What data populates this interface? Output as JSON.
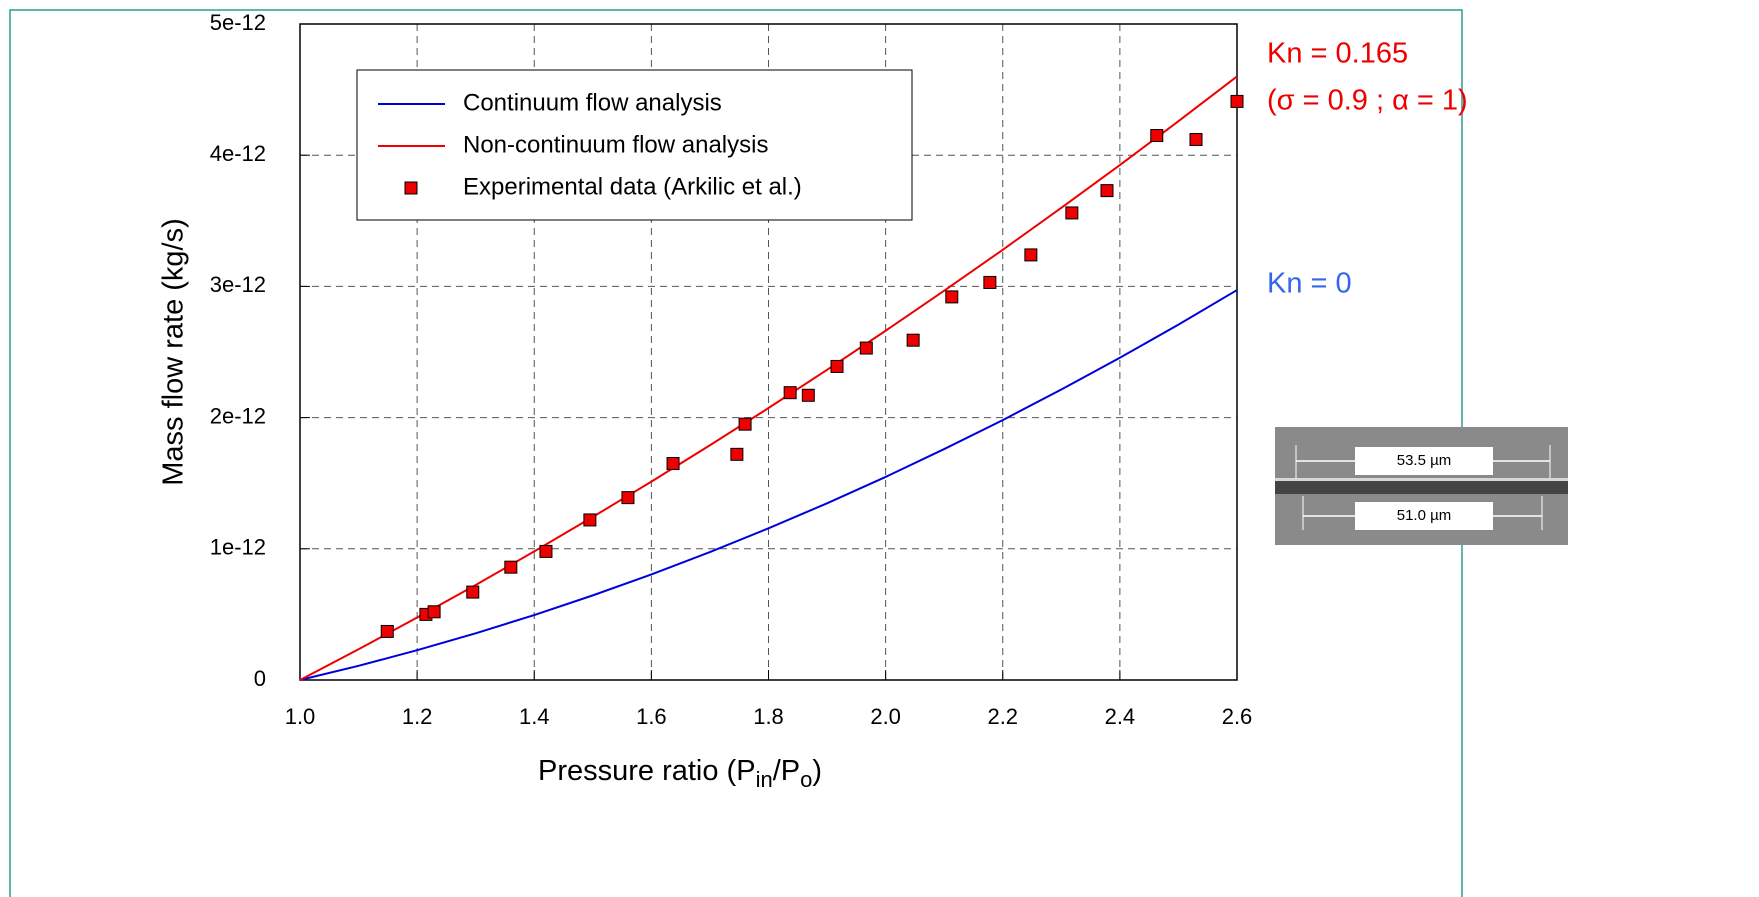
{
  "chart_data": {
    "type": "line",
    "x_label": [
      "Pressure ratio (P",
      "in",
      "/P",
      "o",
      ")"
    ],
    "y_label": "Mass flow rate (kg/s)",
    "xlim": [
      1.0,
      2.6
    ],
    "ylim": [
      0,
      5e-12
    ],
    "xticks": [
      {
        "value": 1.0,
        "label": "1.0"
      },
      1.2,
      1.4,
      1.6,
      1.8,
      {
        "value": 2.0,
        "label": "2.0"
      },
      2.2,
      2.4,
      2.6
    ],
    "yticks": [
      0,
      1e-12,
      2e-12,
      3e-12,
      4e-12,
      5e-12
    ],
    "grid": true,
    "legend": "top-left",
    "series": [
      {
        "name": "Continuum flow analysis",
        "type": "line",
        "color": "#0000dd",
        "x": [
          1.0,
          1.1,
          1.2,
          1.3,
          1.4,
          1.5,
          1.6,
          1.7,
          1.8,
          1.9,
          2.0,
          2.1,
          2.2,
          2.3,
          2.4,
          2.5,
          2.6
        ],
        "values": [
          0,
          1.08e-13,
          2.27e-13,
          3.56e-13,
          4.95e-13,
          6.45e-13,
          8.05e-13,
          9.75e-13,
          1.156e-12,
          1.347e-12,
          1.548e-12,
          1.76e-12,
          1.981e-12,
          2.214e-12,
          2.456e-12,
          2.709e-12,
          2.972e-12
        ]
      },
      {
        "name": "Non-continuum flow analysis",
        "type": "line",
        "color": "#ee0000",
        "x": [
          1.0,
          1.1,
          1.2,
          1.3,
          1.4,
          1.5,
          1.6,
          1.7,
          1.8,
          1.9,
          2.0,
          2.1,
          2.2,
          2.3,
          2.4,
          2.5,
          2.6
        ],
        "values": [
          0,
          2.34e-13,
          4.76e-13,
          7.24e-13,
          9.8e-13,
          1.243e-12,
          1.512e-12,
          1.789e-12,
          2.073e-12,
          2.364e-12,
          2.662e-12,
          2.967e-12,
          3.279e-12,
          3.599e-12,
          3.925e-12,
          4.259e-12,
          4.6e-12
        ]
      },
      {
        "name": "Experimental data (Arkilic et al.)",
        "type": "scatter",
        "color": "#ee0000",
        "x": [
          1.149,
          1.215,
          1.229,
          1.295,
          1.36,
          1.42,
          1.495,
          1.56,
          1.637,
          1.746,
          1.76,
          1.837,
          1.868,
          1.917,
          1.967,
          2.047,
          2.113,
          2.178,
          2.248,
          2.318,
          2.378,
          2.463,
          2.53,
          2.6
        ],
        "values": [
          3.7e-13,
          5e-13,
          5.2e-13,
          6.7e-13,
          8.6e-13,
          9.8e-13,
          1.22e-12,
          1.39e-12,
          1.65e-12,
          1.72e-12,
          1.95e-12,
          2.19e-12,
          2.17e-12,
          2.39e-12,
          2.53e-12,
          2.59e-12,
          2.92e-12,
          3.03e-12,
          3.24e-12,
          3.56e-12,
          3.73e-12,
          4.15e-12,
          4.12e-12,
          4.41e-12
        ]
      }
    ],
    "annotations": [
      {
        "text": "Kn = 0.165",
        "color": "#ee0000"
      },
      {
        "text": "(σ = 0.9 ; α = 1)",
        "color": "#ee0000"
      },
      {
        "text": "Kn = 0",
        "color": "#3366ee"
      }
    ],
    "inset": {
      "labels": [
        "53.5 µm",
        "51.0 µm"
      ]
    }
  }
}
